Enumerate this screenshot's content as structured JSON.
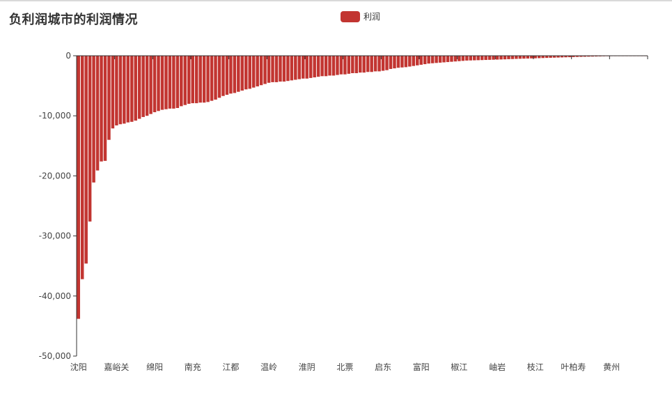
{
  "colors": {
    "series": "#c23531",
    "axis": "#333333"
  },
  "chart_data": {
    "type": "bar",
    "title": "负利润城市的利润情况",
    "legend": {
      "position": "top-center",
      "entries": [
        "利润"
      ]
    },
    "xlabel": "",
    "ylabel": "",
    "ylim": [
      -50000,
      0
    ],
    "yticks": [
      0,
      -10000,
      -20000,
      -30000,
      -40000,
      -50000
    ],
    "ytick_labels": [
      "0",
      "-10,000",
      "-20,000",
      "-30,000",
      "-40,000",
      "-50,000"
    ],
    "grid": false,
    "category_count": 150,
    "x_tick_labels": [
      "沈阳",
      "嘉峪关",
      "绵阳",
      "南充",
      "江都",
      "温岭",
      "淮阴",
      "北票",
      "启东",
      "富阳",
      "椒江",
      "岫岩",
      "枝江",
      "叶柏寿",
      "黄州"
    ],
    "x_tick_every": 10,
    "series": [
      {
        "name": "利润",
        "values": [
          -43800,
          -37200,
          -34600,
          -27600,
          -21100,
          -19100,
          -17600,
          -17500,
          -14000,
          -12100,
          -11600,
          -11400,
          -11300,
          -11100,
          -11000,
          -10800,
          -10500,
          -10200,
          -10000,
          -9700,
          -9400,
          -9200,
          -9000,
          -8900,
          -8800,
          -8800,
          -8700,
          -8400,
          -8200,
          -8000,
          -7900,
          -7900,
          -7800,
          -7800,
          -7700,
          -7500,
          -7300,
          -7000,
          -6700,
          -6500,
          -6300,
          -6200,
          -6000,
          -5800,
          -5600,
          -5500,
          -5300,
          -5100,
          -4900,
          -4700,
          -4500,
          -4400,
          -4400,
          -4300,
          -4300,
          -4200,
          -4100,
          -4000,
          -3900,
          -3800,
          -3800,
          -3700,
          -3600,
          -3500,
          -3400,
          -3400,
          -3300,
          -3300,
          -3200,
          -3100,
          -3100,
          -3000,
          -2900,
          -2900,
          -2800,
          -2800,
          -2700,
          -2700,
          -2600,
          -2600,
          -2500,
          -2400,
          -2200,
          -2100,
          -2000,
          -1950,
          -1900,
          -1800,
          -1700,
          -1600,
          -1500,
          -1400,
          -1300,
          -1250,
          -1200,
          -1150,
          -1100,
          -1050,
          -1000,
          -950,
          -900,
          -850,
          -800,
          -780,
          -760,
          -740,
          -720,
          -700,
          -680,
          -660,
          -640,
          -620,
          -600,
          -570,
          -550,
          -520,
          -500,
          -480,
          -460,
          -440,
          -420,
          -400,
          -380,
          -360,
          -340,
          -320,
          -300,
          -280,
          -260,
          -240,
          -220,
          -200,
          -180,
          -165,
          -150,
          -135,
          -120,
          -105,
          -90,
          -80,
          -70,
          -60,
          -50,
          -42,
          -35,
          -28,
          -20,
          -15,
          -10,
          -5
        ]
      }
    ]
  }
}
